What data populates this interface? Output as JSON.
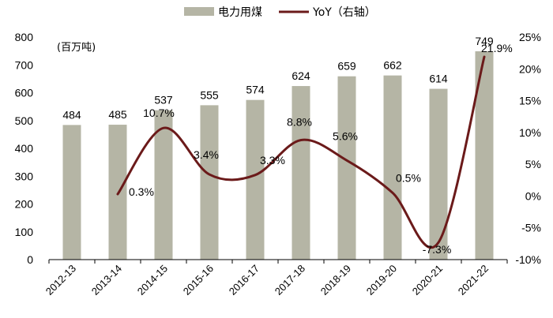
{
  "chart_data": {
    "type": "bar",
    "categories": [
      "2012-13",
      "2013-14",
      "2014-15",
      "2015-16",
      "2016-17",
      "2017-18",
      "2018-19",
      "2019-20",
      "2020-21",
      "2021-22"
    ],
    "series": [
      {
        "name": "电力用煤",
        "type": "bar",
        "axis": "left",
        "color": "#b5b5a5",
        "values": [
          484,
          485,
          537,
          555,
          574,
          624,
          659,
          662,
          614,
          749
        ],
        "labels": [
          "484",
          "485",
          "537",
          "555",
          "574",
          "624",
          "659",
          "662",
          "614",
          "749"
        ]
      },
      {
        "name": "YoY（右轴）",
        "type": "line",
        "axis": "right",
        "color": "#6b1a1a",
        "values": [
          null,
          0.3,
          10.7,
          3.4,
          3.3,
          8.8,
          5.6,
          0.5,
          -7.3,
          21.9
        ],
        "labels": [
          "",
          "0.3%",
          "10.7%",
          "3.4%",
          "3.3%",
          "8.8%",
          "5.6%",
          "0.5%",
          "-7.3%",
          "21.9%"
        ]
      }
    ],
    "unit_label": "(百万吨)",
    "y_left": {
      "ylim": [
        0,
        800
      ],
      "ticks": [
        "0",
        "100",
        "200",
        "300",
        "400",
        "500",
        "600",
        "700",
        "800"
      ]
    },
    "y_right": {
      "ylim": [
        -10,
        25
      ],
      "ticks": [
        "-10%",
        "-5%",
        "0%",
        "5%",
        "10%",
        "15%",
        "20%",
        "25%"
      ]
    },
    "grid": false,
    "legend_position": "top-center"
  }
}
